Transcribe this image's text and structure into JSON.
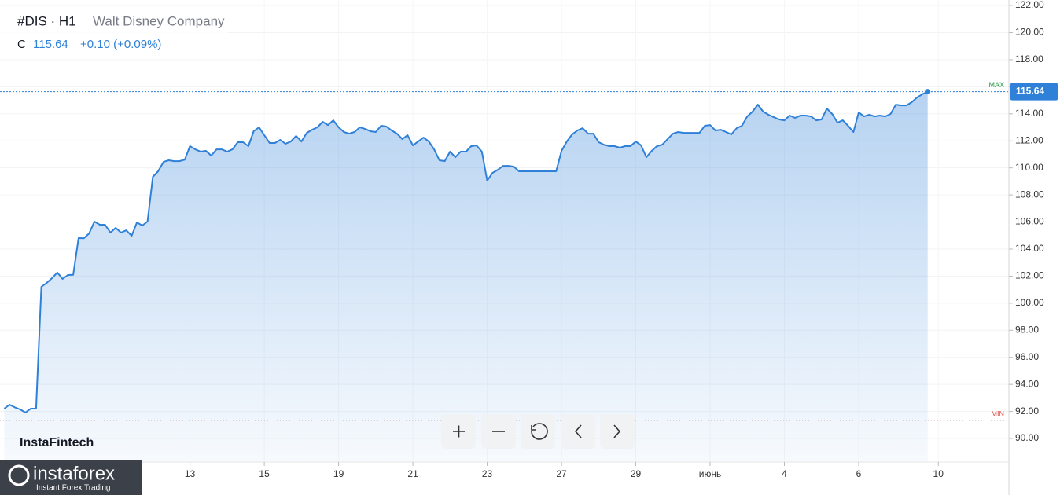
{
  "chart_data": {
    "type": "area",
    "symbol": "#DIS · H1",
    "company": "Walt Disney Company",
    "close_prefix": "C",
    "close": "115.64",
    "change": "+0.10 (+0.09%)",
    "watermark": "InstaFintech",
    "brand": "instaforex",
    "brand_tagline": "Instant Forex Trading",
    "color": "#2f80d8",
    "grid": true,
    "max_line": {
      "label": "MAX",
      "value": 115.64
    },
    "min_line": {
      "label": "MIN",
      "value": 91.34
    },
    "xlim": [
      -0.8,
      189.3
    ],
    "ylim": [
      88.26,
      122.41
    ],
    "yticks": [
      {
        "value": 90,
        "label": "90.00"
      },
      {
        "value": 92,
        "label": "92.00"
      },
      {
        "value": 94,
        "label": "94.00"
      },
      {
        "value": 96,
        "label": "96.00"
      },
      {
        "value": 98,
        "label": "98.00"
      },
      {
        "value": 100,
        "label": "100.00"
      },
      {
        "value": 102,
        "label": "102.00"
      },
      {
        "value": 104,
        "label": "104.00"
      },
      {
        "value": 106,
        "label": "106.00"
      },
      {
        "value": 108,
        "label": "108.00"
      },
      {
        "value": 110,
        "label": "110.00"
      },
      {
        "value": 112,
        "label": "112.00"
      },
      {
        "value": 114,
        "label": "114.00"
      },
      {
        "value": 116,
        "label": "116.00"
      },
      {
        "value": 118,
        "label": "118.00"
      },
      {
        "value": 120,
        "label": "120.00"
      },
      {
        "value": 122,
        "label": "122.00"
      }
    ],
    "xticks": [
      {
        "value": 35,
        "label": "13"
      },
      {
        "value": 49,
        "label": "15"
      },
      {
        "value": 63,
        "label": "19"
      },
      {
        "value": 77,
        "label": "21"
      },
      {
        "value": 91,
        "label": "23"
      },
      {
        "value": 105,
        "label": "27"
      },
      {
        "value": 119,
        "label": "29"
      },
      {
        "value": 133,
        "label": "июнь"
      },
      {
        "value": 147,
        "label": "4"
      },
      {
        "value": 161,
        "label": "6"
      },
      {
        "value": 176,
        "label": "10"
      }
    ],
    "x": [
      0,
      1,
      2,
      3,
      4,
      5,
      6,
      7,
      8,
      9,
      10,
      11,
      12,
      13,
      14,
      15,
      16,
      17,
      18,
      19,
      20,
      21,
      22,
      23,
      24,
      25,
      26,
      27,
      28,
      29,
      30,
      31,
      32,
      33,
      34,
      35,
      36,
      37,
      38,
      39,
      40,
      41,
      42,
      43,
      44,
      45,
      46,
      47,
      48,
      49,
      50,
      51,
      52,
      53,
      54,
      55,
      56,
      57,
      58,
      59,
      60,
      61,
      62,
      63,
      64,
      65,
      66,
      67,
      68,
      69,
      70,
      71,
      72,
      73,
      74,
      75,
      76,
      77,
      78,
      79,
      80,
      81,
      82,
      83,
      84,
      85,
      86,
      87,
      88,
      89,
      90,
      91,
      92,
      93,
      94,
      95,
      96,
      97,
      98,
      99,
      100,
      101,
      102,
      103,
      104,
      105,
      106,
      107,
      108,
      109,
      110,
      111,
      112,
      113,
      114,
      115,
      116,
      117,
      118,
      119,
      120,
      121,
      122,
      123,
      124,
      125,
      126,
      127,
      128,
      129,
      130,
      131,
      132,
      133,
      134,
      135,
      136,
      137,
      138,
      139,
      140,
      141,
      142,
      143,
      144,
      145,
      146,
      147,
      148,
      149,
      150,
      151,
      152,
      153,
      154,
      155,
      156,
      157,
      158,
      159,
      160,
      161,
      162,
      163,
      164,
      165,
      166,
      167,
      168,
      169,
      170,
      171,
      172,
      173,
      174
    ],
    "values": [
      92.21,
      92.5,
      92.3,
      92.15,
      91.92,
      92.21,
      92.21,
      101.21,
      101.5,
      101.85,
      102.26,
      101.79,
      102.08,
      102.1,
      104.81,
      104.8,
      105.16,
      106.03,
      105.8,
      105.8,
      105.22,
      105.57,
      105.22,
      105.39,
      104.98,
      105.97,
      105.74,
      106.03,
      109.34,
      109.75,
      110.44,
      110.56,
      110.5,
      110.5,
      110.6,
      111.61,
      111.37,
      111.2,
      111.26,
      110.91,
      111.37,
      111.37,
      111.2,
      111.37,
      111.9,
      111.9,
      111.61,
      112.71,
      113.0,
      112.42,
      111.84,
      111.84,
      112.07,
      111.78,
      111.95,
      112.36,
      111.95,
      112.59,
      112.82,
      113.0,
      113.41,
      113.17,
      113.52,
      113.0,
      112.65,
      112.53,
      112.65,
      113.0,
      112.88,
      112.71,
      112.65,
      113.12,
      113.06,
      112.77,
      112.53,
      112.13,
      112.42,
      111.66,
      111.95,
      112.24,
      111.95,
      111.37,
      110.56,
      110.5,
      111.2,
      110.79,
      111.2,
      111.2,
      111.61,
      111.66,
      111.2,
      109.05,
      109.63,
      109.86,
      110.15,
      110.15,
      110.1,
      109.75,
      109.75,
      109.75,
      109.75,
      109.75,
      109.75,
      109.75,
      109.75,
      111.26,
      111.95,
      112.48,
      112.77,
      112.94,
      112.53,
      112.53,
      111.9,
      111.72,
      111.61,
      111.61,
      111.49,
      111.61,
      111.61,
      111.95,
      111.66,
      110.79,
      111.26,
      111.61,
      111.72,
      112.13,
      112.53,
      112.65,
      112.59,
      112.59,
      112.59,
      112.59,
      113.12,
      113.17,
      112.77,
      112.82,
      112.65,
      112.48,
      112.94,
      113.12,
      113.81,
      114.16,
      114.68,
      114.16,
      113.93,
      113.75,
      113.58,
      113.52,
      113.87,
      113.7,
      113.87,
      113.87,
      113.81,
      113.52,
      113.58,
      114.39,
      113.99,
      113.35,
      113.52,
      113.12,
      112.65,
      114.1,
      113.81,
      113.93,
      113.81,
      113.87,
      113.81,
      113.99,
      114.68,
      114.62,
      114.62,
      114.86,
      115.21,
      115.45,
      115.64
    ]
  }
}
